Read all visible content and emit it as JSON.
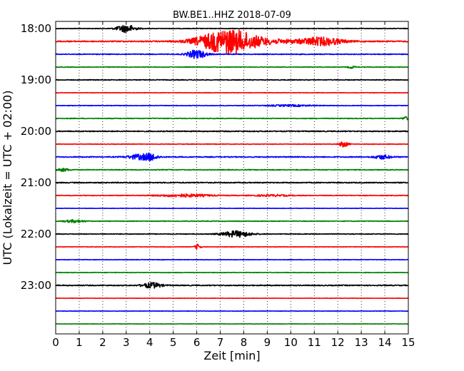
{
  "chart_data": {
    "type": "line",
    "title": "BW.BE1..HHZ 2018-07-09",
    "xlabel": "Zeit  [min]",
    "ylabel": "UTC (Lokalzeit = UTC + 02:00)",
    "xlim": [
      0,
      15
    ],
    "x_ticks": [
      0,
      1,
      2,
      3,
      4,
      5,
      6,
      7,
      8,
      9,
      10,
      11,
      12,
      13,
      14,
      15
    ],
    "y_ticks": [
      "18:00",
      "19:00",
      "20:00",
      "21:00",
      "22:00",
      "23:00"
    ],
    "grid": "vertical dotted",
    "colors": [
      "#000000",
      "#ff0000",
      "#0000ff",
      "#008000"
    ],
    "traces": [
      {
        "start": "18:00",
        "color": "#000000",
        "noise": 0.08,
        "events": [
          {
            "t": 3.0,
            "amp": 1.0,
            "dur": 0.8
          }
        ]
      },
      {
        "start": "18:15",
        "color": "#ff0000",
        "noise": 0.15,
        "events": [
          {
            "t": 7.3,
            "amp": 3.0,
            "dur": 2.4
          },
          {
            "t": 11.3,
            "amp": 1.0,
            "dur": 1.8
          },
          {
            "t": 9.0,
            "amp": 0.4,
            "dur": 3.0
          }
        ]
      },
      {
        "start": "18:30",
        "color": "#0000ff",
        "noise": 0.1,
        "events": [
          {
            "t": 6.0,
            "amp": 1.1,
            "dur": 0.8
          }
        ]
      },
      {
        "start": "18:45",
        "color": "#008000",
        "noise": 0.08,
        "events": [
          {
            "t": 12.6,
            "amp": 0.3,
            "dur": 0.3
          }
        ]
      },
      {
        "start": "19:00",
        "color": "#000000",
        "noise": 0.09,
        "events": []
      },
      {
        "start": "19:15",
        "color": "#ff0000",
        "noise": 0.06,
        "events": []
      },
      {
        "start": "19:30",
        "color": "#0000ff",
        "noise": 0.07,
        "events": [
          {
            "t": 10.0,
            "amp": 0.2,
            "dur": 2.0
          }
        ]
      },
      {
        "start": "19:45",
        "color": "#008000",
        "noise": 0.09,
        "events": [
          {
            "t": 14.9,
            "amp": 0.4,
            "dur": 0.3
          }
        ]
      },
      {
        "start": "20:00",
        "color": "#000000",
        "noise": 0.12,
        "events": []
      },
      {
        "start": "20:15",
        "color": "#ff0000",
        "noise": 0.07,
        "events": [
          {
            "t": 12.25,
            "amp": 0.7,
            "dur": 0.4
          }
        ]
      },
      {
        "start": "20:30",
        "color": "#0000ff",
        "noise": 0.12,
        "events": [
          {
            "t": 3.5,
            "amp": 0.6,
            "dur": 0.9
          },
          {
            "t": 4.05,
            "amp": 0.8,
            "dur": 0.6
          },
          {
            "t": 13.9,
            "amp": 0.5,
            "dur": 0.7
          }
        ]
      },
      {
        "start": "20:45",
        "color": "#008000",
        "noise": 0.1,
        "events": [
          {
            "t": 0.3,
            "amp": 0.35,
            "dur": 0.6
          }
        ]
      },
      {
        "start": "21:00",
        "color": "#000000",
        "noise": 0.12,
        "events": []
      },
      {
        "start": "21:15",
        "color": "#ff0000",
        "noise": 0.09,
        "events": [
          {
            "t": 5.5,
            "amp": 0.35,
            "dur": 2.2
          },
          {
            "t": 9.2,
            "amp": 0.2,
            "dur": 1.5
          }
        ]
      },
      {
        "start": "21:30",
        "color": "#0000ff",
        "noise": 0.05,
        "events": []
      },
      {
        "start": "21:45",
        "color": "#008000",
        "noise": 0.08,
        "events": [
          {
            "t": 0.8,
            "amp": 0.35,
            "dur": 0.8
          }
        ]
      },
      {
        "start": "22:00",
        "color": "#000000",
        "noise": 0.09,
        "events": [
          {
            "t": 7.7,
            "amp": 0.8,
            "dur": 1.2
          }
        ]
      },
      {
        "start": "22:15",
        "color": "#ff0000",
        "noise": 0.06,
        "events": [
          {
            "t": 6.05,
            "amp": 0.7,
            "dur": 0.25
          }
        ]
      },
      {
        "start": "22:30",
        "color": "#0000ff",
        "noise": 0.06,
        "events": []
      },
      {
        "start": "22:45",
        "color": "#008000",
        "noise": 0.07,
        "events": []
      },
      {
        "start": "23:00",
        "color": "#000000",
        "noise": 0.12,
        "events": [
          {
            "t": 4.1,
            "amp": 0.7,
            "dur": 0.8
          }
        ]
      },
      {
        "start": "23:15",
        "color": "#ff0000",
        "noise": 0.05,
        "events": []
      },
      {
        "start": "23:30",
        "color": "#0000ff",
        "noise": 0.05,
        "events": []
      },
      {
        "start": "23:45",
        "color": "#008000",
        "noise": 0.05,
        "events": []
      }
    ]
  }
}
